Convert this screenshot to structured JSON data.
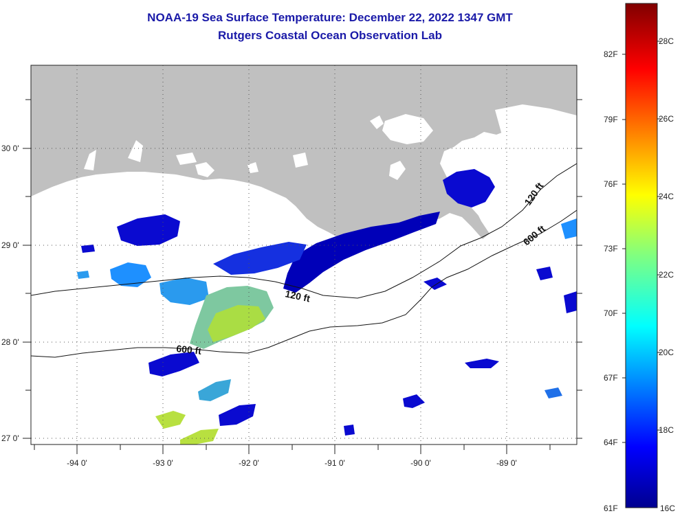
{
  "header": {
    "title": "NOAA-19 Sea Surface Temperature:  December 22, 2022 1347 GMT",
    "subtitle": "Rutgers Coastal Ocean Observation Lab"
  },
  "map": {
    "longitude_labels": [
      "-94 0'",
      "-93 0'",
      "-92 0'",
      "-91 0'",
      "-90 0'",
      "-89 0'"
    ],
    "latitude_labels": [
      "30 0'",
      "29 0'",
      "28 0'",
      "27 0'"
    ],
    "lon_range": [
      -94.55,
      -88.25
    ],
    "lat_range": [
      26.95,
      30.85
    ],
    "land_color": "#c0c0c0",
    "ocean_nodata_color": "#ffffff",
    "grid": "dotted",
    "bathymetry_contours": [
      {
        "label": "120 ft"
      },
      {
        "label": "600 ft"
      }
    ],
    "contour_labels": [
      "120 ft",
      "120 ft",
      "600 ft",
      "600 ft"
    ]
  },
  "colorbar": {
    "fahrenheit_labels": [
      "82F",
      "79F",
      "76F",
      "73F",
      "70F",
      "67F",
      "64F",
      "61F"
    ],
    "celsius_labels": [
      "28C",
      "26C",
      "24C",
      "22C",
      "20C",
      "18C",
      "16C"
    ],
    "range_c": [
      16,
      29
    ],
    "colormap": "jet"
  }
}
